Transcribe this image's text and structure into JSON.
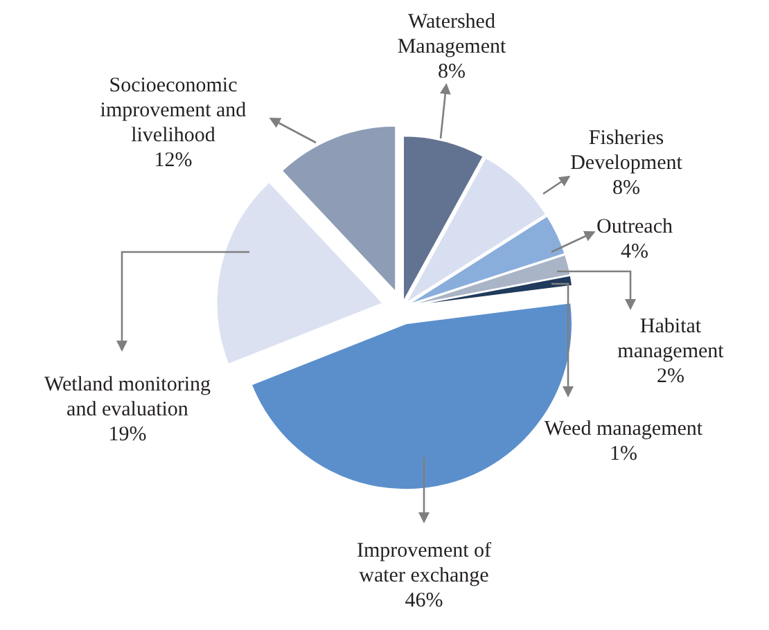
{
  "chart_data": {
    "type": "pie",
    "categories": [
      "Watershed Management",
      "Fisheries Development",
      "Outreach",
      "Habitat management",
      "Weed management",
      "Improvement of water exchange",
      "Wetland monitoring and evaluation",
      "Socioeconomic improvement and livelihood"
    ],
    "values": [
      8,
      8,
      4,
      2,
      1,
      46,
      19,
      12
    ],
    "value_labels": [
      "8%",
      "8%",
      "4%",
      "2%",
      "1%",
      "46%",
      "19%",
      "12%"
    ],
    "colors": [
      "#627391",
      "#d8dff0",
      "#8aaedb",
      "#a9b4c6",
      "#1f3a5c",
      "#5b8fcc",
      "#dbe1f1",
      "#8e9db5"
    ]
  }
}
